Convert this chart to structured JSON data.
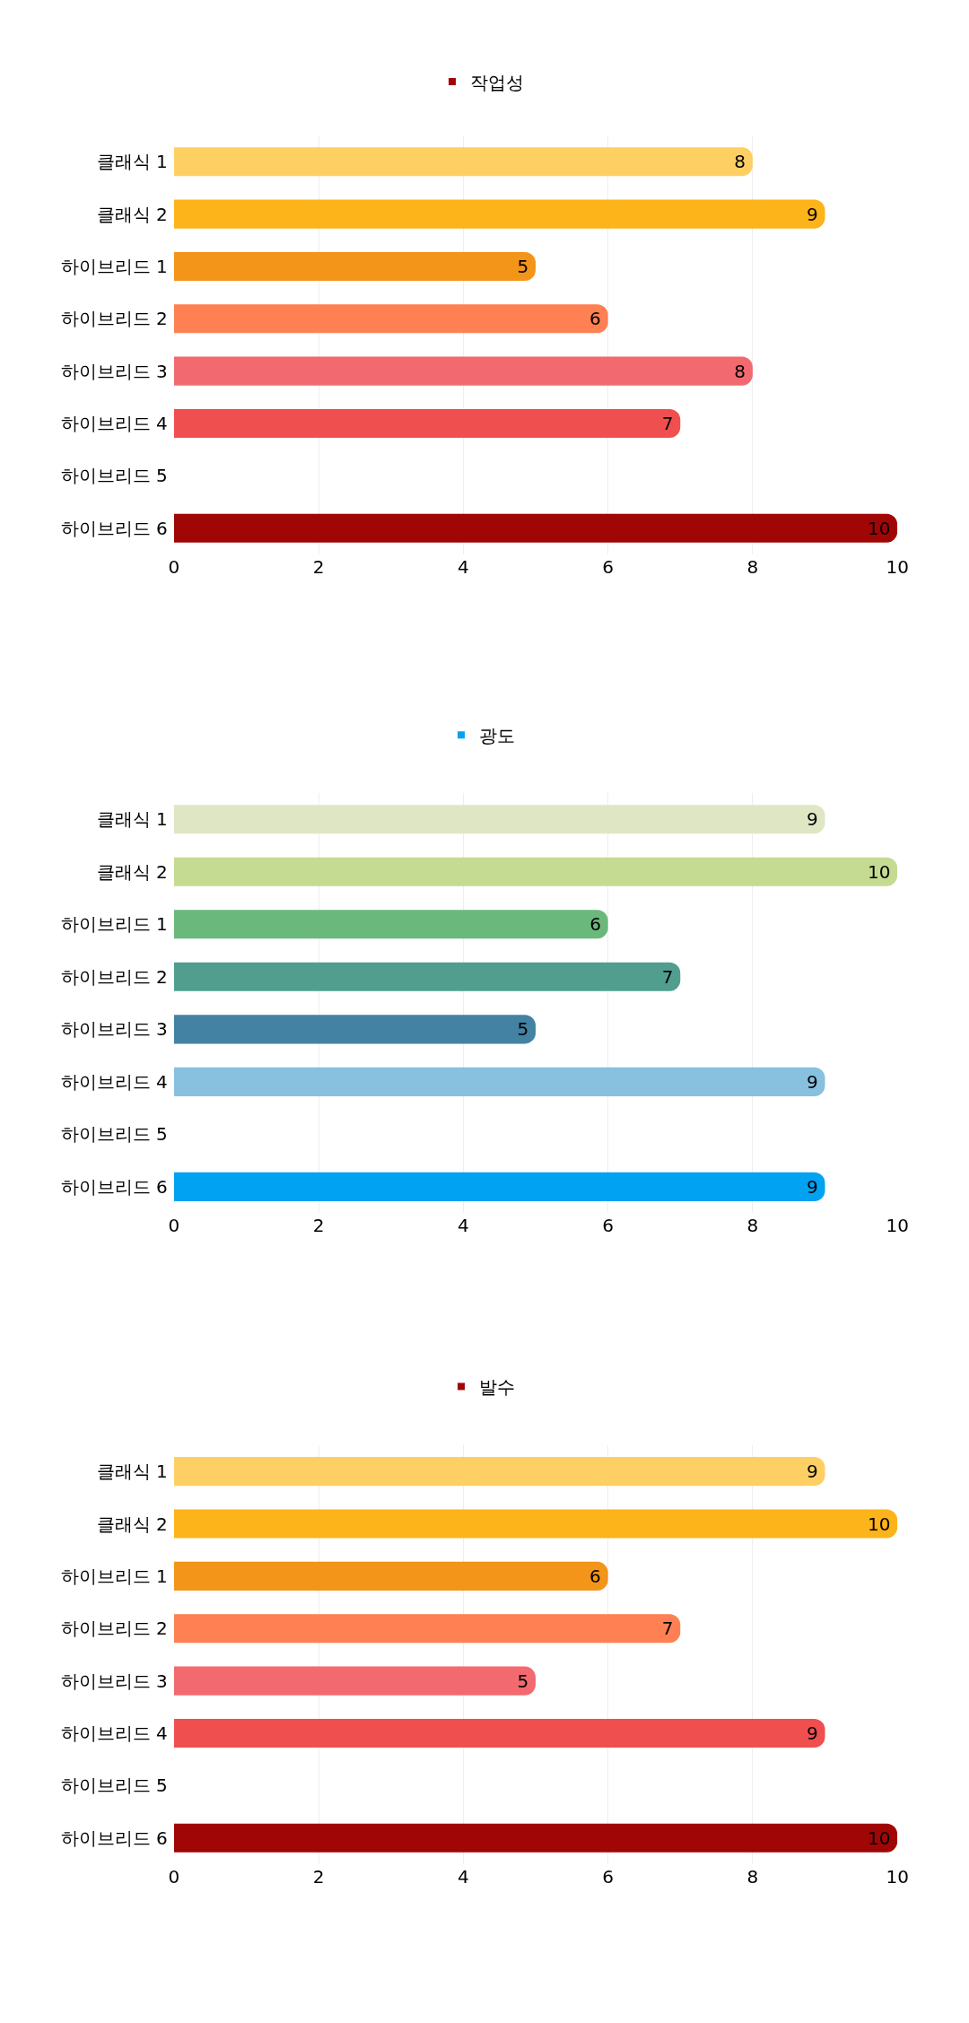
{
  "chart_data": [
    {
      "type": "bar",
      "orientation": "horizontal",
      "categories": [
        "클래식 1",
        "클래식 2",
        "하이브리드 1",
        "하이브리드 2",
        "하이브리드 3",
        "하이브리드 4",
        "하이브리드 5",
        "하이브리드 6"
      ],
      "series": [
        {
          "name": "작업성",
          "color": "#a00606",
          "colors": [
            "#fecf62",
            "#fdb31a",
            "#f39519",
            "#ff8052",
            "#f26a6f",
            "#ef4f4f",
            "#cccccc",
            "#a00606"
          ],
          "values": [
            8,
            9,
            5,
            6,
            8,
            7,
            null,
            10
          ]
        }
      ],
      "xlim": [
        0,
        10
      ],
      "xticks": [
        0,
        2,
        4,
        6,
        8,
        10
      ],
      "grid": "x",
      "legend": "top",
      "data_labels": true
    },
    {
      "type": "bar",
      "orientation": "horizontal",
      "categories": [
        "클래식 1",
        "클래식 2",
        "하이브리드 1",
        "하이브리드 2",
        "하이브리드 3",
        "하이브리드 4",
        "하이브리드 5",
        "하이브리드 6"
      ],
      "series": [
        {
          "name": "광도",
          "color": "#00a2f1",
          "colors": [
            "#dfe6c4",
            "#c5db92",
            "#6bb87c",
            "#519e8f",
            "#4382a3",
            "#88c0df",
            "#cccccc",
            "#00a2f1"
          ],
          "values": [
            9,
            10,
            6,
            7,
            5,
            9,
            null,
            9
          ]
        }
      ],
      "xlim": [
        0,
        10
      ],
      "xticks": [
        0,
        2,
        4,
        6,
        8,
        10
      ],
      "grid": "x",
      "legend": "top",
      "data_labels": true
    },
    {
      "type": "bar",
      "orientation": "horizontal",
      "categories": [
        "클래식 1",
        "클래식 2",
        "하이브리드 1",
        "하이브리드 2",
        "하이브리드 3",
        "하이브리드 4",
        "하이브리드 5",
        "하이브리드 6"
      ],
      "series": [
        {
          "name": "발수",
          "color": "#a00606",
          "colors": [
            "#fecf62",
            "#fdb31a",
            "#f39519",
            "#ff8052",
            "#f26a6f",
            "#ef4f4f",
            "#cccccc",
            "#a00606"
          ],
          "values": [
            9,
            10,
            6,
            7,
            5,
            9,
            null,
            10
          ]
        }
      ],
      "xlim": [
        0,
        10
      ],
      "xticks": [
        0,
        2,
        4,
        6,
        8,
        10
      ],
      "grid": "x",
      "legend": "top",
      "data_labels": true
    }
  ]
}
